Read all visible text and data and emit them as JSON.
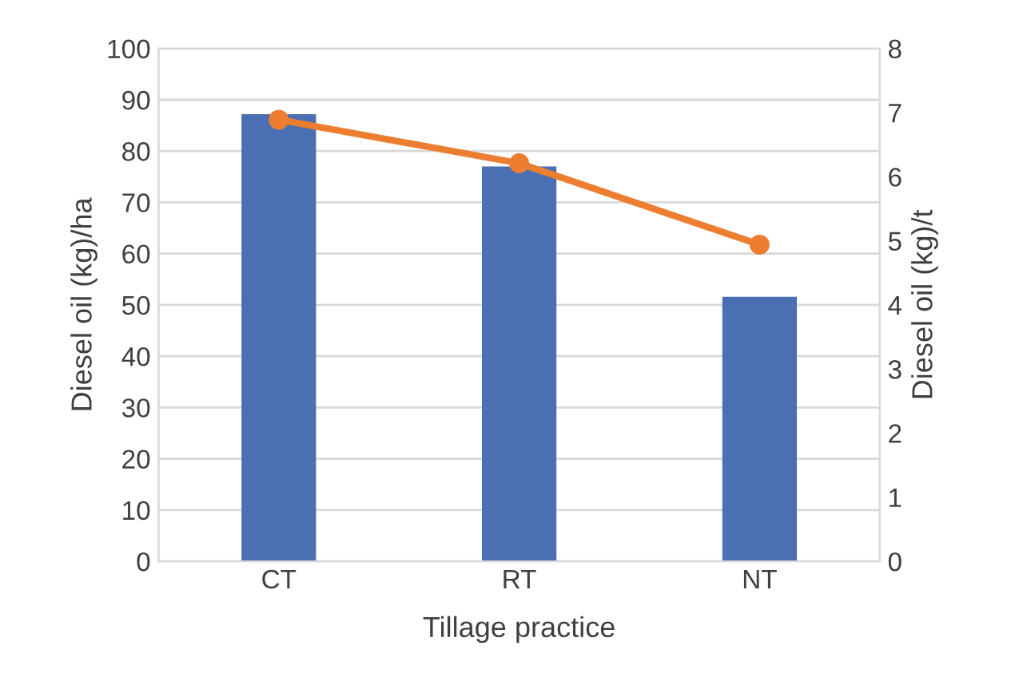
{
  "chart_data": {
    "type": "bar",
    "xlabel": "Tillage practice",
    "ylabel": "Diesel oil (kg)/ha",
    "y2label": "Diesel oil (kg)/t",
    "categories": [
      "CT",
      "RT",
      "NT"
    ],
    "series": [
      {
        "color": "#4a6fb3",
        "values": [
          87.2,
          77.0,
          51.6
        ]
      },
      {
        "type": "line",
        "color": "#ed7d31",
        "axis": "y2",
        "marker": "circle",
        "values": [
          6.89,
          6.21,
          4.94
        ]
      }
    ],
    "ylim": [
      0,
      100
    ],
    "yticks": [
      0,
      10,
      20,
      30,
      40,
      50,
      60,
      70,
      80,
      90,
      100
    ],
    "y2lim": [
      0,
      8
    ],
    "y2ticks": [
      0,
      1,
      2,
      3,
      4,
      5,
      6,
      7,
      8
    ],
    "grid": "y",
    "legend": false
  }
}
